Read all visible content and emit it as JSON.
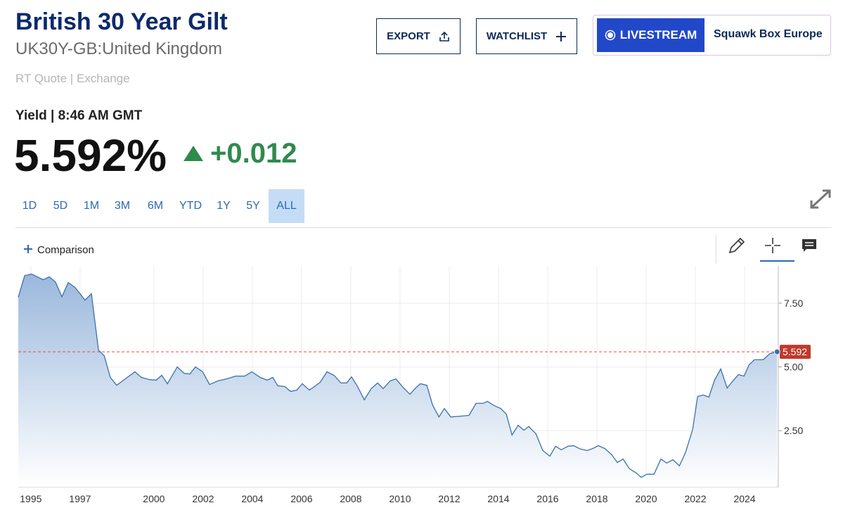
{
  "header": {
    "title": "British 30 Year Gilt",
    "symbol": "UK30Y-GB:United Kingdom",
    "quote_source": "RT Quote | Exchange"
  },
  "buttons": {
    "export": "EXPORT",
    "watchlist": "WATCHLIST",
    "livestream": "LIVESTREAM",
    "show": "Squawk Box Europe"
  },
  "quote": {
    "label": "Yield | 8:46 AM GMT",
    "price": "5.592%",
    "change": "+0.012"
  },
  "ranges": [
    "1D",
    "5D",
    "1M",
    "3M",
    "6M",
    "YTD",
    "1Y",
    "5Y",
    "ALL"
  ],
  "comparison": "Comparison",
  "chart_data": {
    "type": "area",
    "color": "#3a70ad",
    "grid": true,
    "x": [
      1994.49,
      1994.75,
      1995.03,
      1995.5,
      1995.75,
      1996.0,
      1996.26,
      1996.52,
      1996.8,
      1997.0,
      1997.2,
      1997.46,
      1997.75,
      1997.98,
      1998.23,
      1998.49,
      1998.77,
      1999.23,
      1999.49,
      1999.83,
      2000.09,
      2000.32,
      2000.55,
      2000.95,
      2001.23,
      2001.46,
      2001.69,
      2001.98,
      2002.26,
      2002.6,
      2002.95,
      2003.32,
      2003.69,
      2003.98,
      2004.32,
      2004.6,
      2004.83,
      2005.03,
      2005.32,
      2005.55,
      2005.8,
      2006.03,
      2006.32,
      2006.75,
      2007.03,
      2007.32,
      2007.6,
      2007.83,
      2008.03,
      2008.26,
      2008.55,
      2008.83,
      2009.09,
      2009.32,
      2009.6,
      2009.83,
      2010.12,
      2010.4,
      2010.66,
      2010.83,
      2011.09,
      2011.32,
      2011.58,
      2011.8,
      2012.06,
      2012.46,
      2012.8,
      2013.09,
      2013.38,
      2013.55,
      2013.83,
      2014.09,
      2014.32,
      2014.55,
      2014.8,
      2015.03,
      2015.23,
      2015.52,
      2015.8,
      2016.09,
      2016.32,
      2016.55,
      2016.83,
      2017.06,
      2017.32,
      2017.6,
      2017.83,
      2018.06,
      2018.32,
      2018.6,
      2018.83,
      2019.06,
      2019.32,
      2019.6,
      2019.8,
      2020.03,
      2020.32,
      2020.6,
      2020.83,
      2021.09,
      2021.35,
      2021.6,
      2021.89,
      2022.09,
      2022.32,
      2022.55,
      2022.78,
      2023.03,
      2023.29,
      2023.55,
      2023.75,
      2023.98,
      2024.18,
      2024.4,
      2024.75,
      2025.03,
      2025.32
    ],
    "values": [
      7.73,
      8.58,
      8.64,
      8.42,
      8.53,
      8.33,
      7.75,
      8.31,
      8.11,
      7.87,
      7.62,
      7.87,
      5.66,
      5.44,
      4.59,
      4.28,
      4.48,
      4.81,
      4.59,
      4.5,
      4.48,
      4.67,
      4.34,
      5.0,
      4.75,
      4.72,
      5.0,
      4.81,
      4.31,
      4.45,
      4.53,
      4.64,
      4.64,
      4.81,
      4.59,
      4.48,
      4.59,
      4.26,
      4.23,
      4.04,
      4.09,
      4.34,
      4.09,
      4.39,
      4.81,
      4.67,
      4.37,
      4.37,
      4.61,
      4.26,
      3.71,
      4.15,
      4.37,
      4.15,
      4.45,
      4.53,
      4.2,
      3.93,
      4.2,
      4.34,
      4.28,
      3.51,
      3.04,
      3.37,
      3.04,
      3.07,
      3.1,
      3.57,
      3.57,
      3.65,
      3.48,
      3.37,
      3.15,
      2.33,
      2.71,
      2.52,
      2.66,
      2.38,
      1.72,
      1.5,
      1.89,
      1.75,
      1.89,
      1.91,
      1.78,
      1.72,
      1.8,
      1.91,
      1.8,
      1.56,
      1.25,
      1.39,
      1.01,
      0.84,
      0.67,
      0.79,
      0.79,
      1.39,
      1.23,
      1.36,
      1.12,
      1.64,
      2.55,
      3.84,
      3.9,
      3.82,
      4.48,
      4.92,
      4.17,
      4.48,
      4.7,
      4.64,
      5.08,
      5.28,
      5.28,
      5.52,
      5.592
    ],
    "xlim": [
      1994.49,
      2025.37
    ],
    "ylim": [
      0.3,
      8.96
    ],
    "xticks": [
      1995,
      1997,
      2000,
      2002,
      2004,
      2006,
      2008,
      2010,
      2012,
      2014,
      2016,
      2018,
      2020,
      2022,
      2024
    ],
    "yticks": [
      {
        "value": 2.5,
        "label": "2.50"
      },
      {
        "value": 5,
        "label": "5.00"
      },
      {
        "value": 7.5,
        "label": "7.50"
      }
    ]
  }
}
